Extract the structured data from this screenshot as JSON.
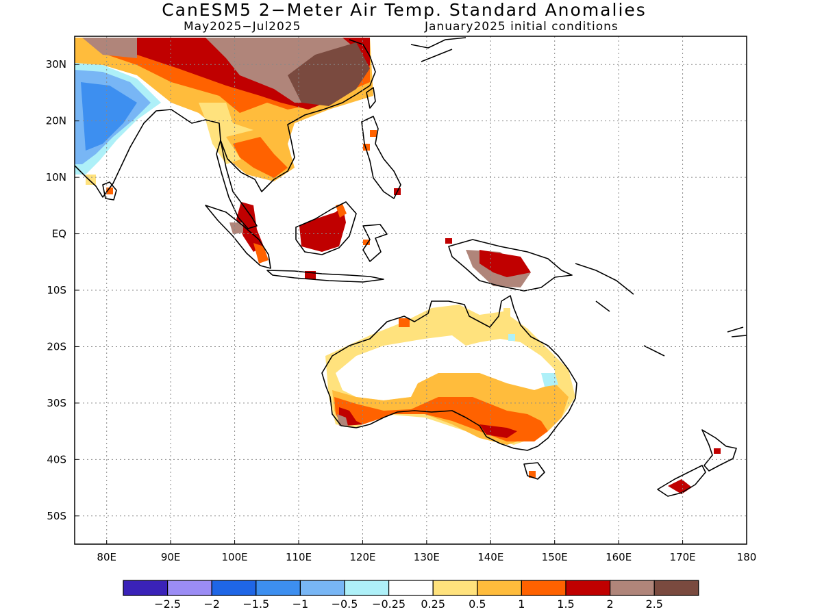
{
  "title": "CanESM5 2−Meter Air Temp. Standard Anomalies",
  "period": "May2025−Jul2025",
  "init": "January2025 initial conditions",
  "lat_labels": [
    {
      "text": "30N",
      "lat": 30
    },
    {
      "text": "20N",
      "lat": 20
    },
    {
      "text": "10N",
      "lat": 10
    },
    {
      "text": "EQ",
      "lat": 0
    },
    {
      "text": "10S",
      "lat": -10
    },
    {
      "text": "20S",
      "lat": -20
    },
    {
      "text": "30S",
      "lat": -30
    },
    {
      "text": "40S",
      "lat": -40
    },
    {
      "text": "50S",
      "lat": -50
    }
  ],
  "lon_labels": [
    {
      "text": "80E",
      "lon": 80
    },
    {
      "text": "90E",
      "lon": 90
    },
    {
      "text": "100E",
      "lon": 100
    },
    {
      "text": "110E",
      "lon": 110
    },
    {
      "text": "120E",
      "lon": 120
    },
    {
      "text": "130E",
      "lon": 130
    },
    {
      "text": "140E",
      "lon": 140
    },
    {
      "text": "150E",
      "lon": 150
    },
    {
      "text": "160E",
      "lon": 160
    },
    {
      "text": "170E",
      "lon": 170
    },
    {
      "text": "180",
      "lon": 180
    }
  ],
  "extent": {
    "lon_min": 75,
    "lon_max": 180,
    "lat_min": -55,
    "lat_max": 35
  },
  "colorbar": {
    "colors": [
      "#3a22b8",
      "#9b8cf5",
      "#1f66e6",
      "#3d8ff0",
      "#78b6f5",
      "#aef0f8",
      "#ffffff",
      "#ffe27d",
      "#ffbc3c",
      "#ff6200",
      "#c00000",
      "#b0857a",
      "#7a4a3f"
    ],
    "tick_labels": [
      "−2.5",
      "−2",
      "−1.5",
      "−1",
      "−0.5",
      "−0.25",
      "0.25",
      "0.5",
      "1",
      "1.5",
      "2",
      "2.5"
    ]
  }
}
